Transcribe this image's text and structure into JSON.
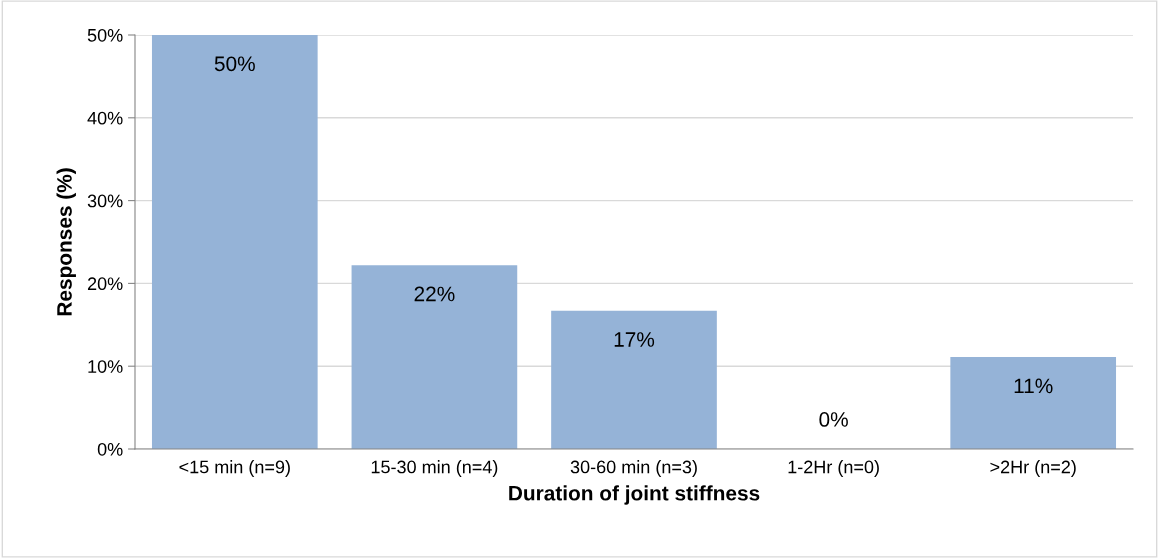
{
  "chart_data": {
    "type": "bar",
    "categories": [
      "<15 min (n=9)",
      "15-30 min (n=4)",
      "30-60 min (n=3)",
      "1-2Hr (n=0)",
      ">2Hr (n=2)"
    ],
    "values": [
      50,
      22.2,
      16.7,
      0,
      11.1
    ],
    "value_labels": [
      "50%",
      "22%",
      "17%",
      "0%",
      "11%"
    ],
    "color": "#95b3d7",
    "xlabel": "Duration of joint stiffness",
    "ylabel": "Responses (%)",
    "ylim": [
      0,
      50
    ],
    "yticks": [
      {
        "value": 0,
        "label": "0%"
      },
      {
        "value": 10,
        "label": "10%"
      },
      {
        "value": 20,
        "label": "20%"
      },
      {
        "value": 30,
        "label": "30%"
      },
      {
        "value": 40,
        "label": "40%"
      },
      {
        "value": 50,
        "label": "50%"
      }
    ],
    "grid": "y",
    "legend": false
  }
}
